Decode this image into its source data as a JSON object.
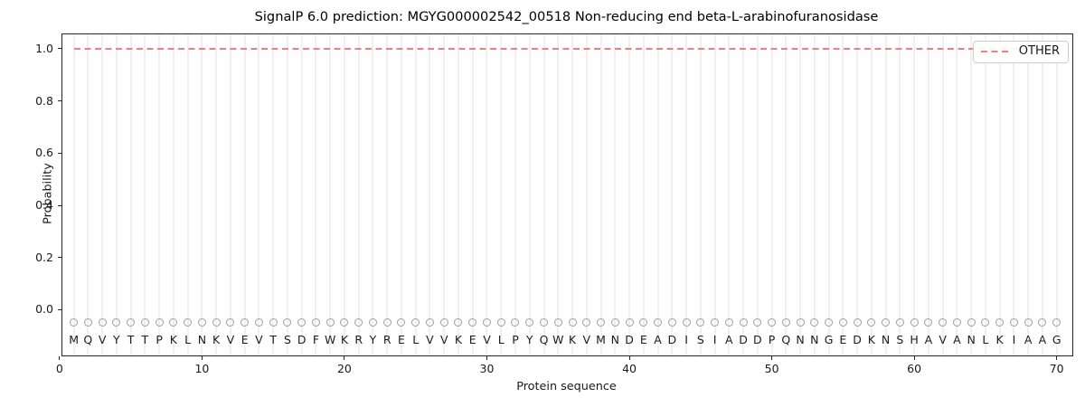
{
  "figure": {
    "title": "SignalP 6.0 prediction: MGYG000002542_00518 Non-reducing end beta-L-arabinofuranosidase"
  },
  "chart_data": {
    "type": "line",
    "title": "SignalP 6.0 prediction: MGYG000002542_00518 Non-reducing end beta-L-arabinofuranosidase",
    "xlabel": "Protein sequence",
    "ylabel": "Probability",
    "xlim": [
      0.2,
      71.1
    ],
    "ylim": [
      -0.175,
      1.055
    ],
    "xticks": [
      0,
      10,
      20,
      30,
      40,
      50,
      60,
      70
    ],
    "ytick_labels": [
      "0.0",
      "0.2",
      "0.4",
      "0.6",
      "0.8",
      "1.0"
    ],
    "grid": "vertical gridline at every residue position 1-70, no horizontal gridlines",
    "legend_position": "upper right",
    "series": [
      {
        "name": "OTHER",
        "line_style": "dashed",
        "color": "#f08080",
        "x_start": 1,
        "x_end": 70,
        "y_constant": 1.0
      }
    ],
    "sequence": "MQVYTTPKLNKVEVTSDFWKRYRELVVKEVLPYQWKVMNDEADISIADDPQNNGEDKNSHAVANLKIAAG",
    "sequence_marker": {
      "shape": "open-circle",
      "color": "#9e9e9e",
      "y_value": -0.05
    },
    "sequence_letter_y_value": -0.115
  },
  "legend": {
    "entries": [
      {
        "label": "OTHER",
        "color": "#f08080",
        "style": "dashed"
      }
    ]
  },
  "colors": {
    "line": "#f08080",
    "grid": "#f0f0f0",
    "marker": "#9e9e9e",
    "spine": "#262626",
    "legend_border": "#cccccc",
    "background": "#ffffff"
  }
}
